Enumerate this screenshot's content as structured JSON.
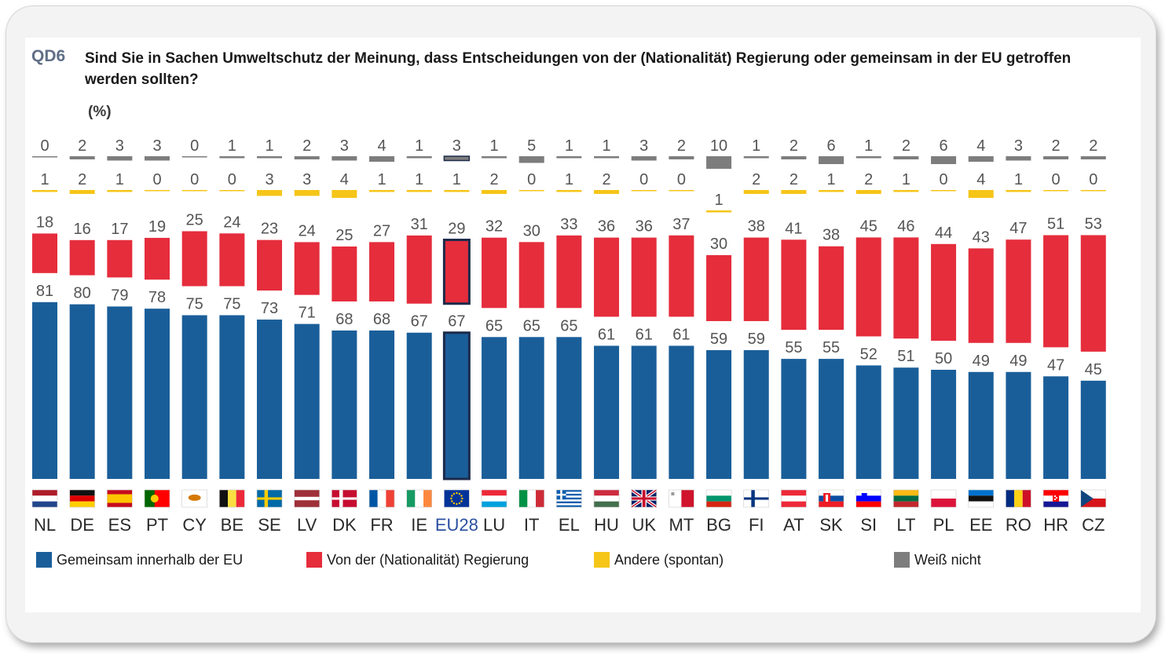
{
  "header": {
    "code": "QD6",
    "title": "Sind Sie in Sachen Umweltschutz der Meinung, dass Entscheidungen von der (Nationalität) Regierung oder gemeinsam in der EU getroffen werden sollten?",
    "unit": "(%)"
  },
  "colors": {
    "blue": "#1a5e99",
    "red": "#e52d3c",
    "yellow": "#f5c518",
    "grey": "#7d7d7d",
    "value_label": "#555555",
    "highlight_outline": "#1c2a4a"
  },
  "legend": [
    {
      "label": "Gemeinsam innerhalb der EU",
      "color": "#1a5e99"
    },
    {
      "label": "Von der  (Nationalität) Regierung",
      "color": "#e52d3c"
    },
    {
      "label": "Andere (spontan)",
      "color": "#f5c518"
    },
    {
      "label": "Weiß nicht",
      "color": "#7d7d7d"
    }
  ],
  "chart_data": {
    "type": "bar",
    "layout": "per-category separate columns per series",
    "categories": [
      "NL",
      "DE",
      "ES",
      "PT",
      "CY",
      "BE",
      "SE",
      "LV",
      "DK",
      "FR",
      "IE",
      "EU28",
      "LU",
      "IT",
      "EL",
      "HU",
      "UK",
      "MT",
      "BG",
      "FI",
      "AT",
      "SK",
      "SI",
      "LT",
      "PL",
      "EE",
      "RO",
      "HR",
      "CZ"
    ],
    "highlight_category": "EU28",
    "series": [
      {
        "name": "Gemeinsam innerhalb der EU",
        "values": [
          81,
          80,
          79,
          78,
          75,
          75,
          73,
          71,
          68,
          68,
          67,
          67,
          65,
          65,
          65,
          61,
          61,
          61,
          59,
          59,
          55,
          55,
          52,
          51,
          50,
          49,
          49,
          47,
          45
        ]
      },
      {
        "name": "Von der  (Nationalität) Regierung",
        "values": [
          18,
          16,
          17,
          19,
          25,
          24,
          23,
          24,
          25,
          27,
          31,
          29,
          32,
          30,
          33,
          36,
          36,
          37,
          30,
          38,
          41,
          38,
          45,
          46,
          44,
          43,
          47,
          51,
          53
        ]
      },
      {
        "name": "Andere (spontan)",
        "values": [
          1,
          2,
          1,
          0,
          0,
          0,
          3,
          3,
          4,
          1,
          1,
          1,
          2,
          0,
          1,
          2,
          0,
          0,
          1,
          2,
          2,
          1,
          2,
          1,
          0,
          4,
          1,
          0,
          0
        ]
      },
      {
        "name": "Weiß nicht",
        "values": [
          0,
          2,
          3,
          3,
          0,
          1,
          1,
          2,
          3,
          4,
          1,
          3,
          1,
          5,
          1,
          1,
          3,
          2,
          10,
          1,
          2,
          6,
          1,
          2,
          6,
          4,
          3,
          2,
          2
        ]
      }
    ]
  }
}
